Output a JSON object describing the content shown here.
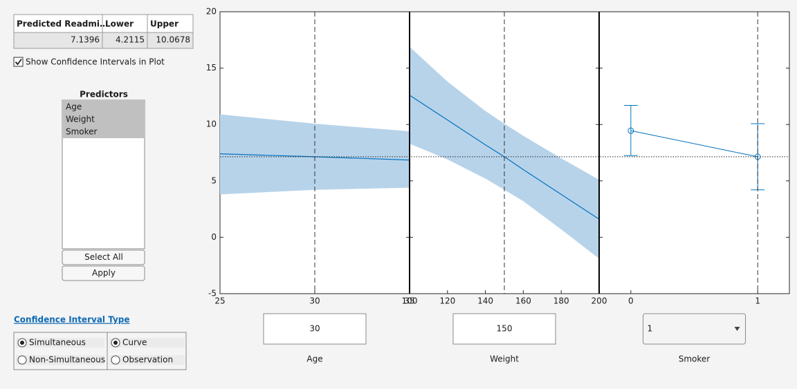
{
  "table": {
    "headers": [
      "Predicted Readmi…",
      "Lower",
      "Upper"
    ],
    "values": [
      7.1396,
      4.2115,
      10.0678
    ]
  },
  "show_ci_checkbox": {
    "label": "Show Confidence Intervals in Plot",
    "checked": true
  },
  "predictors": {
    "title": "Predictors",
    "items": [
      "Age",
      "Weight",
      "Smoker"
    ]
  },
  "buttons": [
    "Select All",
    "Apply"
  ],
  "ci_type": {
    "title": "Confidence Interval Type",
    "groups": [
      {
        "options": [
          "Simultaneous",
          "Non-Simultaneous"
        ],
        "selected": 0
      },
      {
        "options": [
          "Curve",
          "Observation"
        ],
        "selected": 0
      }
    ]
  },
  "chart_data": {
    "type": "slice",
    "ylim": [
      -5,
      20
    ],
    "yticks": [
      -5,
      0,
      5,
      10,
      15,
      20
    ],
    "color": "#0072bd",
    "band_color": "#b7d3ea",
    "panels": [
      {
        "type": "line",
        "label": "Age",
        "current": 30,
        "xlim": [
          25,
          35
        ],
        "xticks": [
          25,
          30,
          35
        ],
        "x": [
          25,
          30,
          35
        ],
        "values": [
          7.4,
          7.14,
          6.85
        ],
        "lower": [
          3.8,
          4.21,
          4.4
        ],
        "upper": [
          10.9,
          10.07,
          9.4
        ]
      },
      {
        "type": "line",
        "label": "Weight",
        "current": 150,
        "xlim": [
          100,
          200
        ],
        "xticks": [
          100,
          120,
          140,
          160,
          180,
          200
        ],
        "x": [
          100,
          120,
          140,
          150,
          160,
          180,
          200
        ],
        "values": [
          12.6,
          10.4,
          8.2,
          7.14,
          6.0,
          3.8,
          1.6
        ],
        "lower": [
          8.3,
          6.9,
          5.2,
          4.21,
          3.2,
          0.7,
          -1.9
        ],
        "upper": [
          16.9,
          13.8,
          11.2,
          10.07,
          9.0,
          7.0,
          5.1
        ]
      },
      {
        "type": "errorbar",
        "label": "Smoker",
        "current": 1,
        "xlim": [
          -0.25,
          1.25
        ],
        "xticks": [
          0,
          1
        ],
        "x": [
          0,
          1
        ],
        "values": [
          9.45,
          7.14
        ],
        "lower": [
          7.25,
          4.21
        ],
        "upper": [
          11.7,
          10.07
        ]
      }
    ]
  }
}
